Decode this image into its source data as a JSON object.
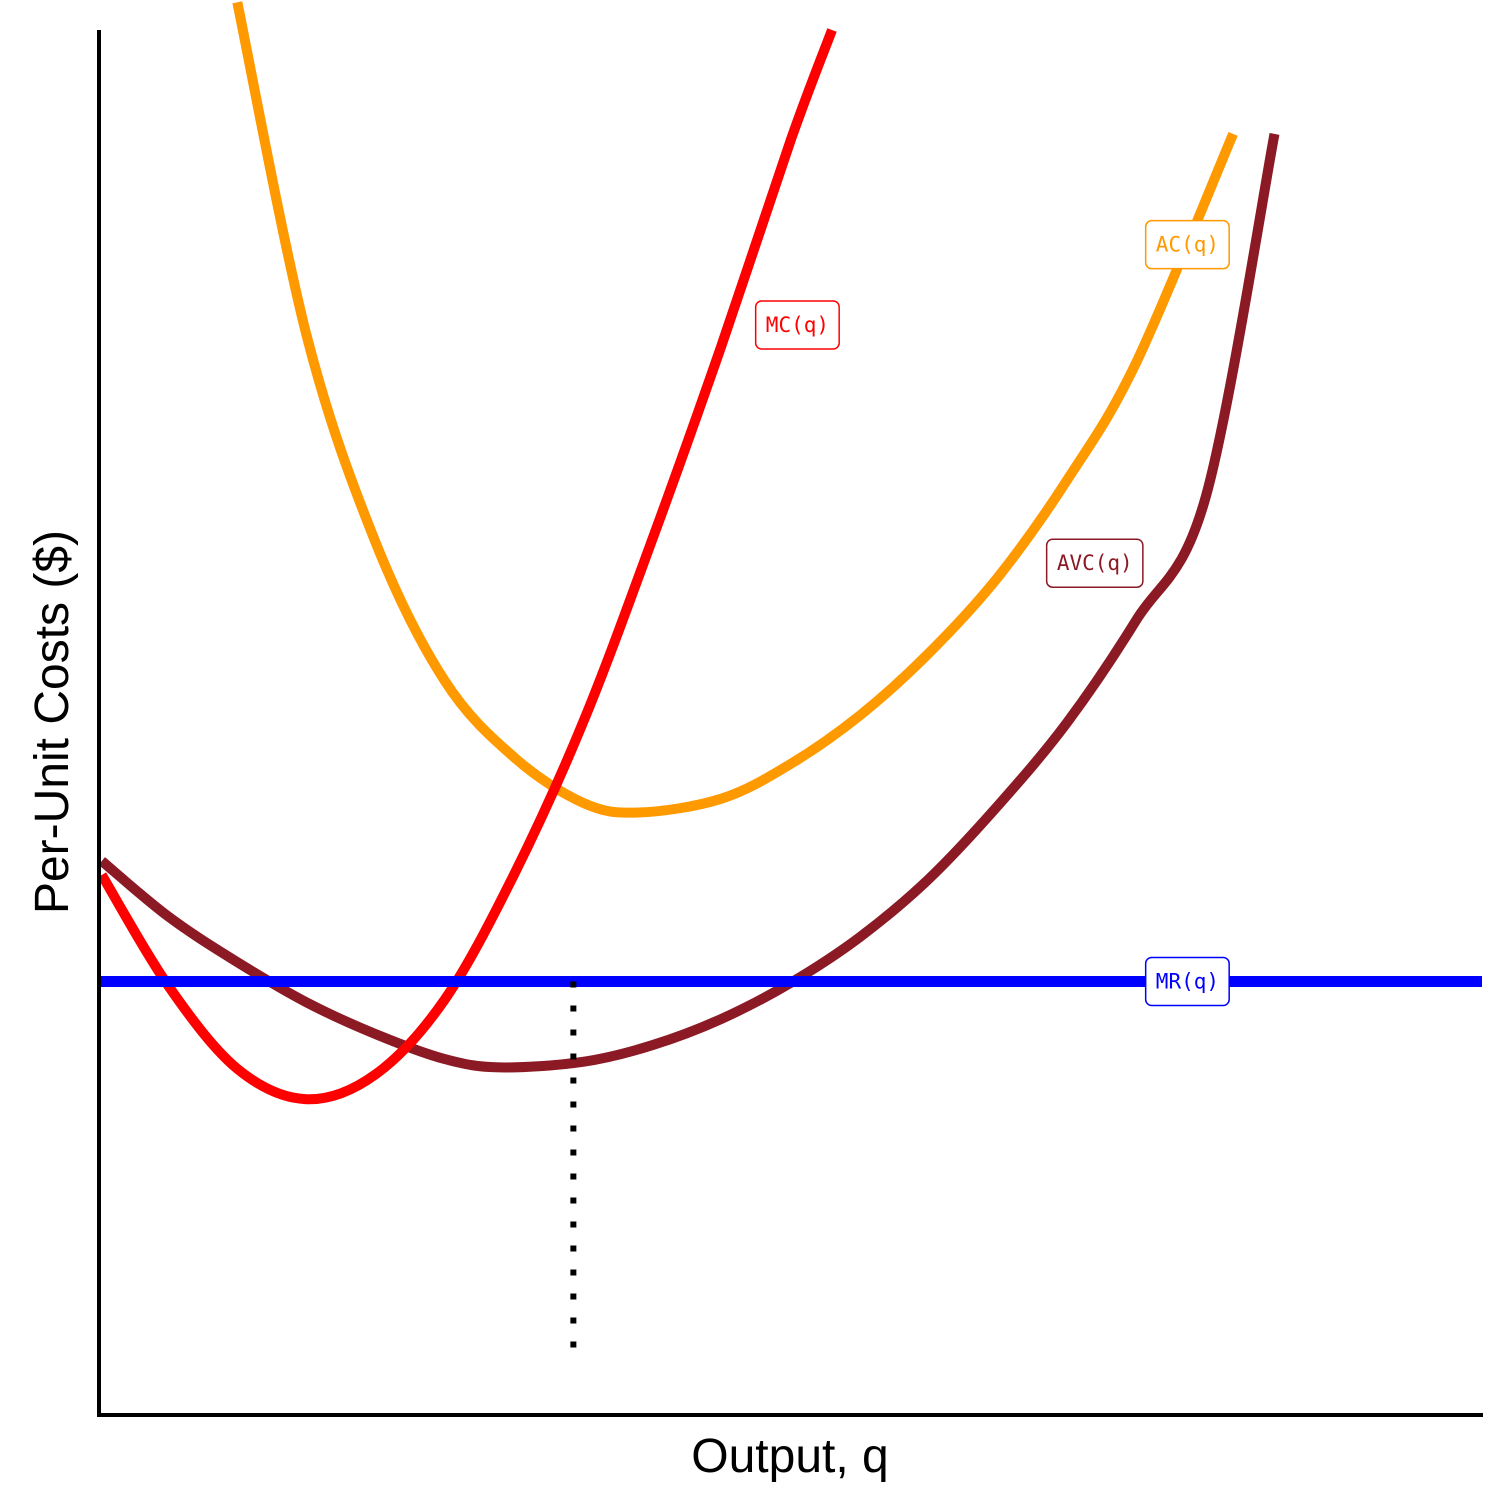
{
  "chart_data": {
    "type": "line",
    "title": "",
    "xlabel": "Output, q",
    "ylabel": "Per-Unit Costs ($)",
    "xlim": [
      0,
      10
    ],
    "ylim": [
      0,
      10
    ],
    "grid": false,
    "legend": "none",
    "series": [
      {
        "name": "MC(q)",
        "color": "#ff0000",
        "label_at": [
          5.05,
          7.87
        ],
        "x": [
          0.02,
          0.5,
          1.0,
          1.5,
          2.0,
          2.5,
          3.0,
          3.5,
          4.0,
          4.5,
          5.0,
          5.3
        ],
        "y": [
          3.9,
          3.1,
          2.5,
          2.28,
          2.46,
          3.0,
          3.9,
          5.0,
          6.32,
          7.72,
          9.2,
          10.0
        ]
      },
      {
        "name": "AC(q)",
        "color": "#ff9900",
        "label_at": [
          7.87,
          8.45
        ],
        "x": [
          1.0,
          1.5,
          2.0,
          2.5,
          3.0,
          3.5,
          3.9,
          4.5,
          5.0,
          5.5,
          6.0,
          6.5,
          7.0,
          7.5,
          8.2
        ],
        "y": [
          10.2,
          7.8,
          6.3,
          5.3,
          4.75,
          4.42,
          4.35,
          4.45,
          4.7,
          5.05,
          5.5,
          6.05,
          6.75,
          7.6,
          9.25
        ]
      },
      {
        "name": "AVC(q)",
        "color": "#8b1a24",
        "label_at": [
          7.2,
          6.15
        ],
        "x": [
          0.02,
          0.5,
          1.0,
          1.5,
          2.0,
          2.5,
          2.9,
          3.5,
          4.0,
          4.5,
          5.0,
          5.5,
          6.0,
          6.5,
          7.0,
          7.5,
          8.0,
          8.5
        ],
        "y": [
          4.0,
          3.6,
          3.27,
          2.98,
          2.75,
          2.57,
          2.51,
          2.55,
          2.67,
          2.86,
          3.12,
          3.45,
          3.87,
          4.4,
          5.0,
          5.74,
          6.62,
          9.25
        ]
      },
      {
        "name": "MR(q)",
        "color": "#0000ff",
        "label_at": [
          7.87,
          3.13
        ],
        "x": [
          0.0,
          10.0
        ],
        "y": [
          3.13,
          3.13
        ]
      }
    ],
    "annotations": [
      {
        "type": "vline",
        "style": "dotted",
        "x": 3.43,
        "y_from": 0.46,
        "y_to": 3.13,
        "color": "#000000"
      }
    ]
  }
}
